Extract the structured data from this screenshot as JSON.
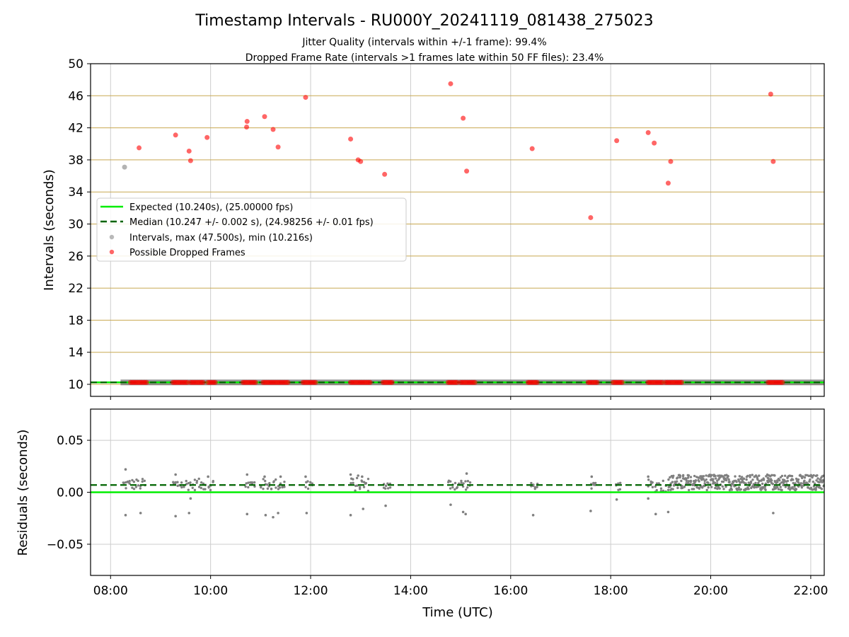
{
  "chart_data": [
    {
      "type": "scatter",
      "title": "Timestamp Intervals - RU000Y_20241119_081438_275023",
      "subtitle_lines": [
        "Jitter Quality (intervals within +/-1 frame): 99.4%",
        "Dropped Frame Rate (intervals >1 frames late within 50 FF files): 23.4%"
      ],
      "ylabel": "Intervals (seconds)",
      "xlabel": "",
      "x_unit": "hours UTC",
      "xlim": [
        7.6,
        22.27
      ],
      "ylim": [
        8.5,
        50
      ],
      "yticks": [
        10,
        14,
        18,
        22,
        26,
        30,
        34,
        38,
        42,
        46,
        50
      ],
      "ytick_labels": [
        "10",
        "14",
        "18",
        "22",
        "26",
        "30",
        "34",
        "38",
        "42",
        "46",
        "50"
      ],
      "xticks": [
        8,
        10,
        12,
        14,
        16,
        18,
        20,
        22
      ],
      "xtick_labels": [
        "08:00",
        "10:00",
        "12:00",
        "14:00",
        "16:00",
        "18:00",
        "20:00",
        "22:00"
      ],
      "grid": true,
      "legend_position": "center-left",
      "legend": [
        "Expected (10.240s), (25.00000 fps)",
        "Median (10.247 +/- 0.002 s), (24.98256 +/- 0.01 fps)",
        "Intervals, max (47.500s), min (10.216s)",
        "Possible Dropped Frames"
      ],
      "colors": {
        "expected": "#00ee00",
        "median": "#006400",
        "intervals": "#808080",
        "dropped": "#ff0000",
        "grid_y": "#c8a850",
        "grid_x": "#cccccc"
      },
      "expected_line": {
        "y": 10.24,
        "x_start": 7.6,
        "x_end": 22.27
      },
      "median_line": {
        "y": 10.247,
        "x_start": 7.6,
        "x_end": 22.27
      },
      "series": [
        {
          "name": "Intervals, max (47.500s), min (10.216s)",
          "high_points": [
            [
              8.28,
              37.1
            ]
          ],
          "baseline_y": 10.24,
          "baseline_segments": [
            [
              8.2,
              22.27
            ]
          ]
        },
        {
          "name": "Possible Dropped Frames",
          "points": [
            [
              8.57,
              39.5
            ],
            [
              9.3,
              41.1
            ],
            [
              9.57,
              39.1
            ],
            [
              9.6,
              37.9
            ],
            [
              9.93,
              40.8
            ],
            [
              10.72,
              42.1
            ],
            [
              10.73,
              42.8
            ],
            [
              11.08,
              43.4
            ],
            [
              11.25,
              41.8
            ],
            [
              11.35,
              39.6
            ],
            [
              11.9,
              45.8
            ],
            [
              12.8,
              40.6
            ],
            [
              12.95,
              38.0
            ],
            [
              13.0,
              37.8
            ],
            [
              13.48,
              36.2
            ],
            [
              14.8,
              47.5
            ],
            [
              15.05,
              43.2
            ],
            [
              15.12,
              36.6
            ],
            [
              16.43,
              39.4
            ],
            [
              17.6,
              30.8
            ],
            [
              18.12,
              40.4
            ],
            [
              18.75,
              41.4
            ],
            [
              18.87,
              40.1
            ],
            [
              19.15,
              35.1
            ],
            [
              19.2,
              37.8
            ],
            [
              21.2,
              46.2
            ],
            [
              21.25,
              37.8
            ]
          ],
          "low_clusters": [
            [
              8.4,
              8.75
            ],
            [
              9.25,
              9.55
            ],
            [
              9.6,
              9.85
            ],
            [
              9.95,
              10.1
            ],
            [
              10.65,
              10.9
            ],
            [
              11.05,
              11.55
            ],
            [
              11.85,
              12.1
            ],
            [
              12.8,
              13.2
            ],
            [
              13.45,
              13.65
            ],
            [
              14.75,
              14.95
            ],
            [
              15.0,
              15.3
            ],
            [
              16.35,
              16.55
            ],
            [
              17.55,
              17.75
            ],
            [
              18.05,
              18.25
            ],
            [
              18.75,
              19.05
            ],
            [
              19.1,
              19.45
            ],
            [
              21.15,
              21.45
            ]
          ],
          "low_y": 10.24
        }
      ]
    },
    {
      "type": "scatter",
      "title": "",
      "ylabel": "Residuals (seconds)",
      "xlabel": "Time (UTC)",
      "x_unit": "hours UTC",
      "xlim": [
        7.6,
        22.27
      ],
      "ylim": [
        -0.08,
        0.08
      ],
      "yticks": [
        -0.05,
        0.0,
        0.05
      ],
      "ytick_labels": [
        "−0.05",
        "0.00",
        "0.05"
      ],
      "xticks": [
        8,
        10,
        12,
        14,
        16,
        18,
        20,
        22
      ],
      "xtick_labels": [
        "08:00",
        "10:00",
        "12:00",
        "14:00",
        "16:00",
        "18:00",
        "20:00",
        "22:00"
      ],
      "grid": true,
      "expected_line": {
        "y": 0.0
      },
      "median_line": {
        "y": 0.007
      },
      "series": [
        {
          "name": "Residuals",
          "clusters": [
            {
              "x": [
                8.25,
                8.7
              ],
              "y_range": [
                0.002,
                0.013
              ]
            },
            {
              "x": [
                9.25,
                9.9
              ],
              "y_range": [
                0.002,
                0.013
              ]
            },
            {
              "x": [
                9.95,
                10.05
              ],
              "y_range": [
                0.002,
                0.013
              ]
            },
            {
              "x": [
                10.7,
                10.9
              ],
              "y_range": [
                0.002,
                0.013
              ]
            },
            {
              "x": [
                11.0,
                11.5
              ],
              "y_range": [
                0.002,
                0.013
              ]
            },
            {
              "x": [
                11.9,
                12.05
              ],
              "y_range": [
                0.002,
                0.013
              ]
            },
            {
              "x": [
                12.8,
                13.15
              ],
              "y_range": [
                0.001,
                0.014
              ]
            },
            {
              "x": [
                13.45,
                13.6
              ],
              "y_range": [
                0.002,
                0.01
              ]
            },
            {
              "x": [
                14.75,
                15.2
              ],
              "y_range": [
                0.002,
                0.013
              ]
            },
            {
              "x": [
                16.4,
                16.55
              ],
              "y_range": [
                0.003,
                0.009
              ]
            },
            {
              "x": [
                17.6,
                17.7
              ],
              "y_range": [
                0.003,
                0.009
              ]
            },
            {
              "x": [
                18.1,
                18.2
              ],
              "y_range": [
                0.002,
                0.009
              ]
            },
            {
              "x": [
                18.75,
                19.1
              ],
              "y_range": [
                0.0,
                0.013
              ]
            },
            {
              "x": [
                19.15,
                22.27
              ],
              "y_range": [
                0.002,
                0.017
              ],
              "dense": true
            }
          ],
          "outliers": [
            [
              8.3,
              0.022
            ],
            [
              8.3,
              -0.022
            ],
            [
              8.6,
              -0.02
            ],
            [
              9.3,
              0.017
            ],
            [
              9.3,
              -0.023
            ],
            [
              9.57,
              -0.02
            ],
            [
              9.6,
              -0.006
            ],
            [
              9.95,
              0.015
            ],
            [
              10.73,
              0.017
            ],
            [
              10.73,
              -0.021
            ],
            [
              11.08,
              0.015
            ],
            [
              11.1,
              -0.022
            ],
            [
              11.25,
              -0.024
            ],
            [
              11.35,
              -0.02
            ],
            [
              11.4,
              0.015
            ],
            [
              11.9,
              0.015
            ],
            [
              11.92,
              -0.02
            ],
            [
              12.8,
              0.017
            ],
            [
              12.8,
              -0.022
            ],
            [
              12.95,
              0.016
            ],
            [
              13.03,
              0.015
            ],
            [
              13.05,
              -0.016
            ],
            [
              13.5,
              -0.013
            ],
            [
              14.8,
              -0.012
            ],
            [
              15.05,
              -0.019
            ],
            [
              15.1,
              -0.021
            ],
            [
              15.12,
              0.018
            ],
            [
              16.45,
              -0.022
            ],
            [
              17.6,
              -0.018
            ],
            [
              17.62,
              0.015
            ],
            [
              18.12,
              -0.007
            ],
            [
              18.75,
              0.015
            ],
            [
              18.75,
              -0.006
            ],
            [
              18.9,
              -0.021
            ],
            [
              19.15,
              -0.019
            ],
            [
              21.25,
              -0.02
            ]
          ]
        }
      ]
    }
  ]
}
